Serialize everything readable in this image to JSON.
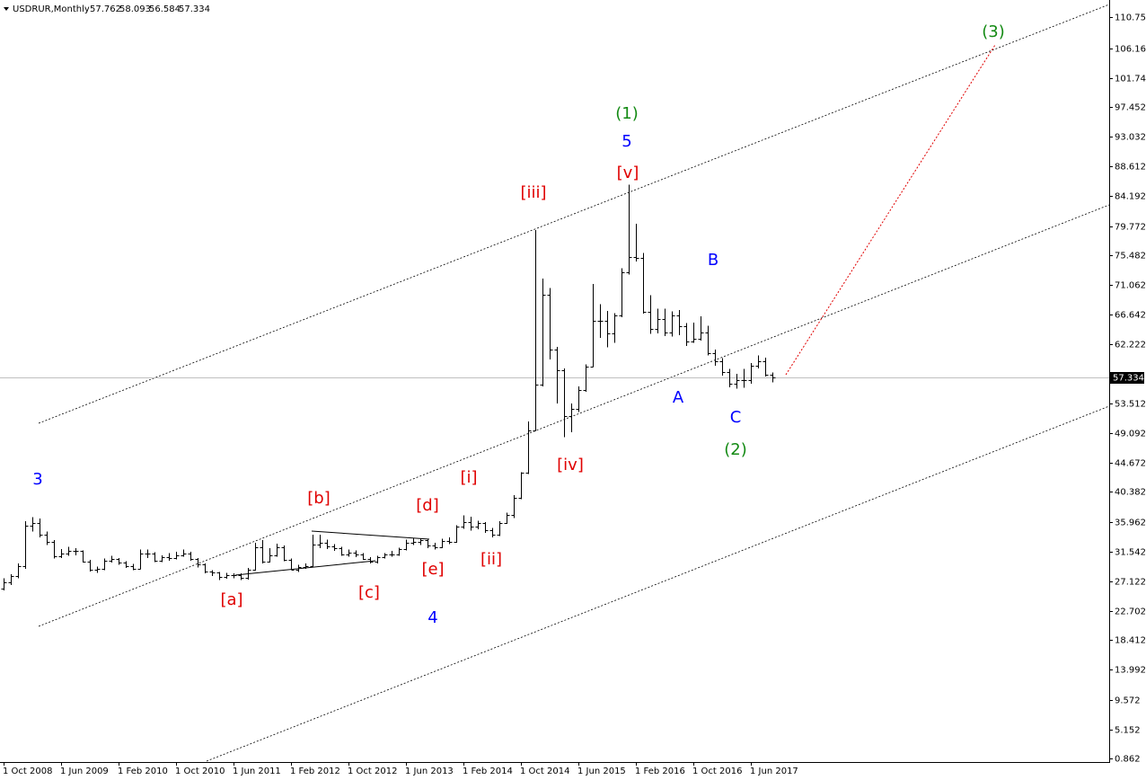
{
  "chart_data": {
    "type": "ohlc",
    "symbol": "USDRUR,Monthly",
    "color": "#000000",
    "current_price_color": "#c0c0c0",
    "ylim": [
      0.329,
      113.29
    ],
    "yticks": [
      110.752,
      106.162,
      101.742,
      97.452,
      93.032,
      88.612,
      84.192,
      79.772,
      75.482,
      71.062,
      66.642,
      62.222,
      53.512,
      49.092,
      44.672,
      40.382,
      35.962,
      31.542,
      27.122,
      22.702,
      18.412,
      13.992,
      9.572,
      5.152,
      0.862
    ],
    "categories": [
      "1 Oct 2008",
      null,
      null,
      null,
      null,
      null,
      null,
      null,
      "1 Jun 2009",
      null,
      null,
      null,
      null,
      null,
      null,
      null,
      "1 Feb 2010",
      null,
      null,
      null,
      null,
      null,
      null,
      null,
      "1 Oct 2010",
      null,
      null,
      null,
      null,
      null,
      null,
      null,
      "1 Jun 2011",
      null,
      null,
      null,
      null,
      null,
      null,
      null,
      "1 Feb 2012",
      null,
      null,
      null,
      null,
      null,
      null,
      null,
      "1 Oct 2012",
      null,
      null,
      null,
      null,
      null,
      null,
      null,
      "1 Jun 2013",
      null,
      null,
      null,
      null,
      null,
      null,
      null,
      "1 Feb 2014",
      null,
      null,
      null,
      null,
      null,
      null,
      null,
      "1 Oct 2014",
      null,
      null,
      null,
      null,
      null,
      null,
      null,
      "1 Jun 2015",
      null,
      null,
      null,
      null,
      null,
      null,
      null,
      "1 Feb 2016",
      null,
      null,
      null,
      null,
      null,
      null,
      null,
      "1 Oct 2016",
      null,
      null,
      null,
      null,
      null,
      null,
      null,
      "1 Jun 2017",
      null,
      null,
      null
    ],
    "open": [
      26.0,
      27.0,
      27.9,
      29.4,
      35.4,
      35.7,
      34.0,
      33.0,
      30.9,
      31.3,
      31.6,
      31.6,
      30.1,
      28.9,
      29.0,
      30.2,
      30.4,
      29.9,
      29.4,
      29.0,
      31.2,
      31.2,
      30.2,
      30.7,
      30.6,
      31.0,
      31.3,
      30.5,
      29.7,
      28.6,
      28.4,
      27.8,
      28.0,
      28.0,
      27.7,
      28.9,
      32.2,
      30.0,
      31.0,
      32.2,
      30.3,
      28.9,
      29.3,
      29.4,
      32.5,
      32.8,
      32.3,
      32.0,
      31.1,
      31.4,
      31.1,
      30.5,
      30.0,
      30.7,
      31.1,
      31.1,
      31.9,
      32.8,
      33.0,
      33.2,
      32.4,
      32.1,
      33.1,
      32.9,
      35.2,
      35.9,
      35.2,
      35.7,
      34.7,
      34.0,
      35.7,
      37.0,
      39.5,
      43.2,
      49.5,
      56.3,
      69.6,
      61.5,
      58.4,
      51.6,
      52.7,
      55.5,
      59.0,
      65.8,
      65.7,
      63.9,
      66.5,
      72.9,
      75.2,
      75.0,
      67.1,
      64.6,
      66.0,
      64.0,
      66.6,
      65.0,
      62.7,
      63.1,
      64.0,
      61.0,
      59.7,
      58.2,
      56.4,
      56.9,
      57.0,
      59.1,
      59.8,
      57.762
    ],
    "high": [
      27.6,
      28.2,
      29.8,
      36.0,
      36.6,
      36.4,
      34.5,
      33.2,
      31.9,
      32.2,
      32.0,
      31.7,
      30.3,
      29.3,
      30.5,
      30.9,
      30.6,
      30.1,
      29.7,
      31.8,
      31.8,
      31.4,
      31.0,
      31.3,
      31.5,
      31.8,
      31.5,
      30.6,
      29.8,
      28.8,
      28.5,
      28.4,
      28.3,
      28.3,
      29.1,
      32.8,
      33.2,
      32.0,
      32.7,
      32.4,
      30.5,
      29.6,
      29.8,
      34.0,
      34.0,
      33.3,
      32.6,
      32.2,
      31.8,
      31.7,
      31.3,
      30.7,
      30.9,
      31.3,
      31.6,
      32.1,
      33.3,
      33.5,
      33.5,
      33.3,
      32.8,
      33.4,
      33.6,
      35.4,
      36.9,
      36.7,
      36.1,
      35.9,
      35.0,
      36.0,
      37.3,
      39.9,
      43.3,
      50.8,
      79.2,
      72.0,
      70.6,
      61.9,
      58.7,
      53.5,
      56.0,
      59.3,
      71.2,
      68.2,
      67.2,
      66.9,
      73.5,
      85.9,
      80.1,
      75.8,
      69.5,
      67.5,
      67.5,
      67.1,
      67.3,
      65.4,
      65.5,
      66.4,
      65.0,
      61.5,
      60.2,
      58.6,
      57.9,
      58.6,
      59.5,
      60.6,
      60.3,
      58.093
    ],
    "low": [
      25.8,
      26.6,
      27.6,
      29.0,
      34.5,
      33.6,
      32.5,
      30.5,
      30.6,
      30.9,
      31.0,
      29.9,
      28.6,
      28.4,
      28.8,
      29.9,
      29.6,
      29.1,
      28.8,
      28.9,
      30.6,
      30.0,
      30.0,
      30.2,
      30.4,
      30.8,
      30.2,
      29.2,
      28.3,
      27.9,
      27.3,
      27.5,
      27.6,
      27.3,
      27.4,
      28.7,
      29.8,
      29.9,
      30.8,
      30.1,
      28.9,
      28.5,
      29.0,
      29.3,
      32.0,
      31.9,
      31.6,
      30.9,
      30.8,
      30.7,
      30.3,
      29.8,
      29.8,
      30.5,
      30.8,
      30.9,
      31.7,
      32.5,
      32.5,
      32.0,
      31.8,
      32.0,
      32.6,
      32.8,
      34.9,
      34.6,
      34.8,
      34.3,
      33.6,
      33.8,
      35.6,
      36.5,
      39.3,
      43.0,
      49.4,
      56.0,
      60.0,
      53.5,
      48.5,
      49.2,
      52.2,
      55.2,
      58.9,
      63.2,
      61.8,
      62.5,
      66.3,
      72.6,
      74.5,
      66.8,
      63.8,
      63.9,
      63.5,
      63.4,
      63.6,
      62.0,
      62.5,
      62.8,
      60.6,
      59.1,
      57.6,
      55.9,
      55.7,
      55.8,
      56.4,
      58.7,
      57.5,
      56.584
    ],
    "close": [
      27.0,
      27.9,
      29.4,
      35.4,
      35.7,
      34.0,
      33.0,
      30.9,
      31.3,
      31.6,
      31.6,
      30.1,
      28.9,
      29.0,
      30.2,
      30.4,
      29.9,
      29.4,
      29.0,
      31.2,
      31.2,
      30.2,
      30.7,
      30.6,
      31.0,
      31.3,
      30.5,
      29.7,
      28.6,
      28.4,
      27.8,
      28.0,
      28.0,
      27.7,
      28.9,
      32.2,
      30.0,
      31.0,
      32.2,
      30.3,
      28.9,
      29.3,
      29.4,
      32.5,
      32.8,
      32.3,
      32.0,
      31.1,
      31.4,
      31.1,
      30.5,
      30.0,
      30.7,
      31.1,
      31.1,
      31.9,
      32.8,
      33.0,
      33.2,
      32.4,
      32.1,
      33.1,
      32.9,
      35.2,
      35.9,
      35.2,
      35.7,
      34.7,
      34.0,
      35.7,
      37.0,
      39.5,
      43.2,
      49.5,
      56.3,
      69.6,
      61.5,
      58.4,
      51.6,
      52.7,
      55.5,
      59.0,
      65.8,
      65.7,
      63.9,
      66.5,
      72.9,
      75.2,
      75.0,
      67.1,
      64.6,
      66.0,
      64.0,
      66.6,
      65.0,
      62.7,
      63.1,
      64.0,
      61.0,
      59.7,
      58.2,
      56.4,
      56.9,
      57.0,
      59.1,
      59.8,
      57.762,
      57.334
    ],
    "annotations": [
      {
        "text": "3",
        "color": "#0000ff"
      },
      {
        "text": "4",
        "color": "#0000ff"
      },
      {
        "text": "5",
        "color": "#0000ff"
      },
      {
        "text": "[a]",
        "color": "#e00000"
      },
      {
        "text": "[b]",
        "color": "#e00000"
      },
      {
        "text": "[c]",
        "color": "#e00000"
      },
      {
        "text": "[d]",
        "color": "#e00000"
      },
      {
        "text": "[e]",
        "color": "#e00000"
      },
      {
        "text": "[i]",
        "color": "#e00000"
      },
      {
        "text": "[ii]",
        "color": "#e00000"
      },
      {
        "text": "[iii]",
        "color": "#e00000"
      },
      {
        "text": "[iv]",
        "color": "#e00000"
      },
      {
        "text": "[v]",
        "color": "#e00000"
      },
      {
        "text": "(1)",
        "color": "#138a13"
      },
      {
        "text": "(2)",
        "color": "#138a13"
      },
      {
        "text": "(3)",
        "color": "#138a13"
      },
      {
        "text": "A",
        "color": "#0000ff"
      },
      {
        "text": "B",
        "color": "#0000ff"
      },
      {
        "text": "C",
        "color": "#0000ff"
      }
    ]
  }
}
